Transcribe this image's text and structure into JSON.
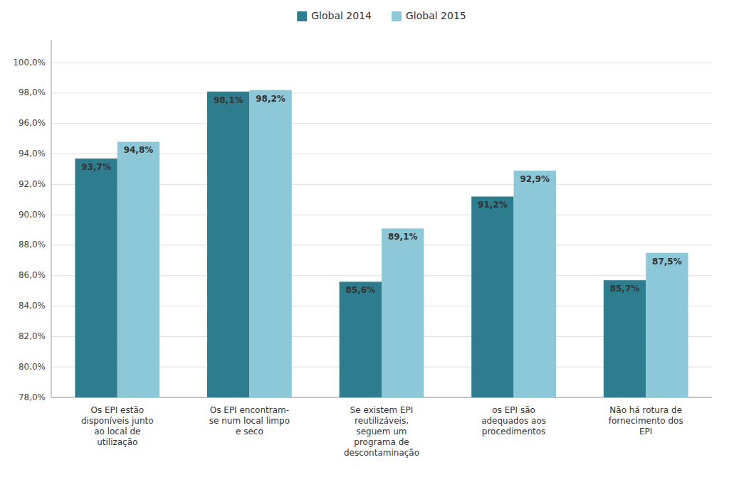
{
  "chart_data": {
    "type": "bar",
    "categories": [
      "Os EPI estão\ndisponíveis junto\nao local de\nutilização",
      "Os EPI encontram-\nse num local limpo\ne seco",
      "Se existem EPI\nreutilizáveis,\nseguem um\nprograma de\ndescontaminação",
      "os EPI são\nadequados aos\nprocedimentos",
      "Não há rotura de\nfornecimento dos\nEPI"
    ],
    "series": [
      {
        "name": "Global 2014",
        "color": "#2E7D8F",
        "values": [
          93.7,
          98.1,
          85.6,
          91.2,
          85.7
        ],
        "value_labels": [
          "93,7%",
          "98,1%",
          "85,6%",
          "91,2%",
          "85,7%"
        ]
      },
      {
        "name": "Global 2015",
        "color": "#8DC8D8",
        "values": [
          94.8,
          98.2,
          89.1,
          92.9,
          87.5
        ],
        "value_labels": [
          "94,8%",
          "98,2%",
          "89,1%",
          "92,9%",
          "87,5%"
        ]
      }
    ],
    "ylim": [
      78.0,
      101.5
    ],
    "yticks": [
      {
        "value": 78.0,
        "label": "78,0%"
      },
      {
        "value": 80.0,
        "label": "80,0%"
      },
      {
        "value": 82.0,
        "label": "82,0%"
      },
      {
        "value": 84.0,
        "label": "84,0%"
      },
      {
        "value": 86.0,
        "label": "86,0%"
      },
      {
        "value": 88.0,
        "label": "88,0%"
      },
      {
        "value": 90.0,
        "label": "90,0%"
      },
      {
        "value": 92.0,
        "label": "92,0%"
      },
      {
        "value": 94.0,
        "label": "94,0%"
      },
      {
        "value": 96.0,
        "label": "96,0%"
      },
      {
        "value": 98.0,
        "label": "98,0%"
      },
      {
        "value": 100.0,
        "label": "100,0%"
      }
    ],
    "grid": true,
    "legend": "top",
    "data_labels": true
  }
}
